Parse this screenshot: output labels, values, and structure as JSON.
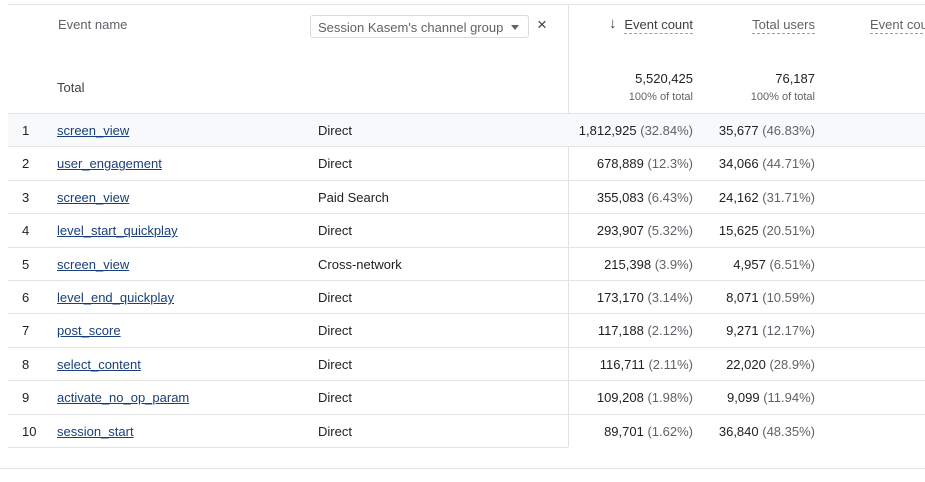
{
  "header": {
    "event_name": "Event name",
    "dimension": "Session Kasem's channel group",
    "remove": "×",
    "sort_arrow": "↓",
    "columns": [
      "Event count",
      "Total users",
      "Event cou"
    ]
  },
  "total": {
    "label": "Total",
    "event_count": "5,520,425",
    "event_count_share": "100% of total",
    "total_users": "76,187",
    "total_users_share": "100% of total"
  },
  "table": {
    "rows": [
      [
        "1",
        "screen_view",
        "Direct",
        "1,812,925",
        "(32.84%)",
        "35,677",
        "(46.83%)"
      ],
      [
        "2",
        "user_engagement",
        "Direct",
        "678,889",
        "(12.3%)",
        "34,066",
        "(44.71%)"
      ],
      [
        "3",
        "screen_view",
        "Paid Search",
        "355,083",
        "(6.43%)",
        "24,162",
        "(31.71%)"
      ],
      [
        "4",
        "level_start_quickplay",
        "Direct",
        "293,907",
        "(5.32%)",
        "15,625",
        "(20.51%)"
      ],
      [
        "5",
        "screen_view",
        "Cross-network",
        "215,398",
        "(3.9%)",
        "4,957",
        "(6.51%)"
      ],
      [
        "6",
        "level_end_quickplay",
        "Direct",
        "173,170",
        "(3.14%)",
        "8,071",
        "(10.59%)"
      ],
      [
        "7",
        "post_score",
        "Direct",
        "117,188",
        "(2.12%)",
        "9,271",
        "(12.17%)"
      ],
      [
        "8",
        "select_content",
        "Direct",
        "116,711",
        "(2.11%)",
        "22,020",
        "(28.9%)"
      ],
      [
        "9",
        "activate_no_op_param",
        "Direct",
        "109,208",
        "(1.98%)",
        "9,099",
        "(11.94%)"
      ],
      [
        "10",
        "session_start",
        "Direct",
        "89,701",
        "(1.62%)",
        "36,840",
        "(48.35%)"
      ]
    ]
  }
}
